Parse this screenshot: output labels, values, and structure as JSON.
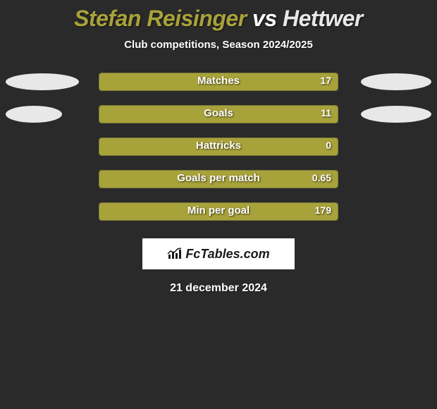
{
  "title": {
    "player1": "Stefan Reisinger",
    "vs": "vs",
    "player2": "Hettwer",
    "player1_color": "#a8a23a",
    "player2_color": "#e8e8e8"
  },
  "subtitle": "Club competitions, Season 2024/2025",
  "background_color": "#2a2a2a",
  "bars": {
    "track_border": "#7a7a3a",
    "fill_color": "#a8a23a",
    "track_width": 340
  },
  "ovals": {
    "left_color": "#e8e8e8",
    "right_color": "#e8e8e8"
  },
  "stats": [
    {
      "label": "Matches",
      "value": "17",
      "fill_pct": 100,
      "oval_left_w": 104,
      "oval_right_w": 100
    },
    {
      "label": "Goals",
      "value": "11",
      "fill_pct": 100,
      "oval_left_w": 80,
      "oval_right_w": 100
    },
    {
      "label": "Hattricks",
      "value": "0",
      "fill_pct": 100,
      "oval_left_w": 0,
      "oval_right_w": 0
    },
    {
      "label": "Goals per match",
      "value": "0.65",
      "fill_pct": 100,
      "oval_left_w": 0,
      "oval_right_w": 0
    },
    {
      "label": "Min per goal",
      "value": "179",
      "fill_pct": 100,
      "oval_left_w": 0,
      "oval_right_w": 0
    }
  ],
  "logo": {
    "text": "FcTables.com"
  },
  "date": "21 december 2024"
}
